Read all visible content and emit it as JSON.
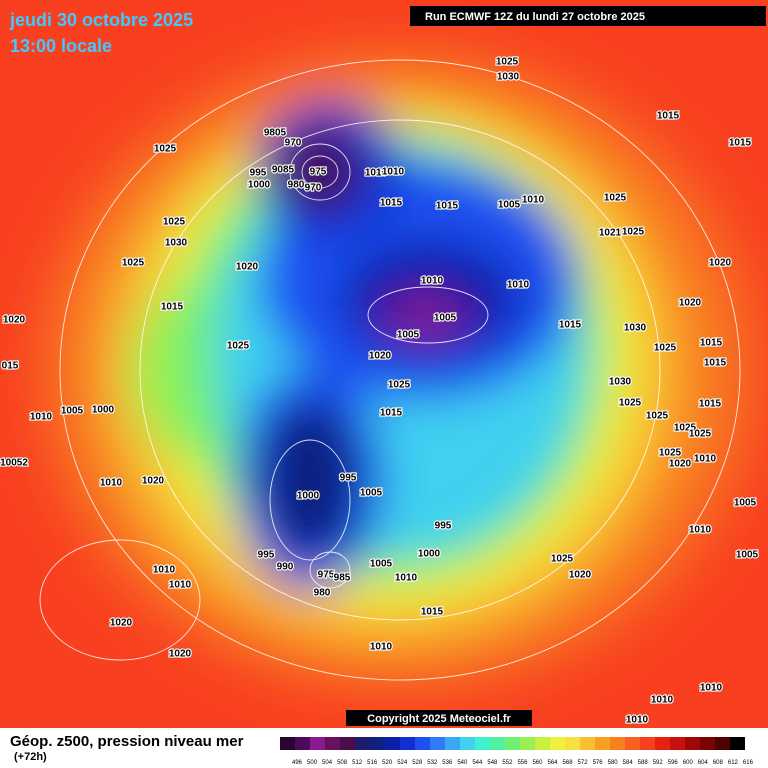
{
  "header": {
    "date": "jeudi 30 octobre 2025",
    "time": "13:00 locale",
    "run": "Run ECMWF 12Z du lundi 27 octobre 2025"
  },
  "map": {
    "isobar_labels": [
      "1025",
      "1030",
      "1015",
      "1015",
      "1025",
      "9805",
      "970",
      "975",
      "995",
      "9085",
      "1000",
      "980",
      "970",
      "1010",
      "1010",
      "1015",
      "1015",
      "1005",
      "1010",
      "1025",
      "1021",
      "1025",
      "1025",
      "1030",
      "1025",
      "1020",
      "1020",
      "1010",
      "1010",
      "1015",
      "1020",
      "1005",
      "1015",
      "1030",
      "1005",
      "1025",
      "1020",
      "1025",
      "1015",
      "1020",
      "015",
      "1015",
      "1025",
      "1030",
      "1010",
      "1005",
      "1000",
      "1025",
      "1015",
      "1015",
      "1025",
      "1025",
      "1025",
      "1025",
      "1020",
      "1010",
      "10052",
      "995",
      "1010",
      "1020",
      "1000",
      "1005",
      "1005",
      "995",
      "1010",
      "995",
      "1000",
      "1025",
      "990",
      "1005",
      "975",
      "985",
      "1005",
      "1010",
      "1010",
      "1020",
      "1010",
      "980",
      "1015",
      "1020",
      "1010",
      "1020",
      "1010",
      "1010",
      "1010"
    ],
    "copyright": "Copyright 2025 Meteociel.fr"
  },
  "footer": {
    "title": "Géop. z500, pression niveau mer",
    "lead": "(+72h)"
  },
  "colorbar": {
    "ticks": [
      496,
      500,
      504,
      508,
      512,
      516,
      520,
      524,
      528,
      532,
      536,
      540,
      544,
      548,
      552,
      556,
      560,
      564,
      568,
      572,
      576,
      580,
      584,
      588,
      592,
      596,
      600,
      604,
      608,
      612,
      616
    ],
    "colors": [
      "#2a0530",
      "#4b0a5c",
      "#8a1a8f",
      "#6a1060",
      "#4a0d45",
      "#1c1c6e",
      "#102080",
      "#0a1faa",
      "#1030d0",
      "#1e50f0",
      "#2f7af5",
      "#38a8f5",
      "#40d0f0",
      "#3cf0d0",
      "#50f0a0",
      "#70f070",
      "#9af050",
      "#c8f040",
      "#f0f040",
      "#f8e040",
      "#f8c030",
      "#f8a020",
      "#f88020",
      "#f86020",
      "#f84020",
      "#e82010",
      "#c81010",
      "#a00808",
      "#780404",
      "#500202",
      "#000000"
    ]
  }
}
